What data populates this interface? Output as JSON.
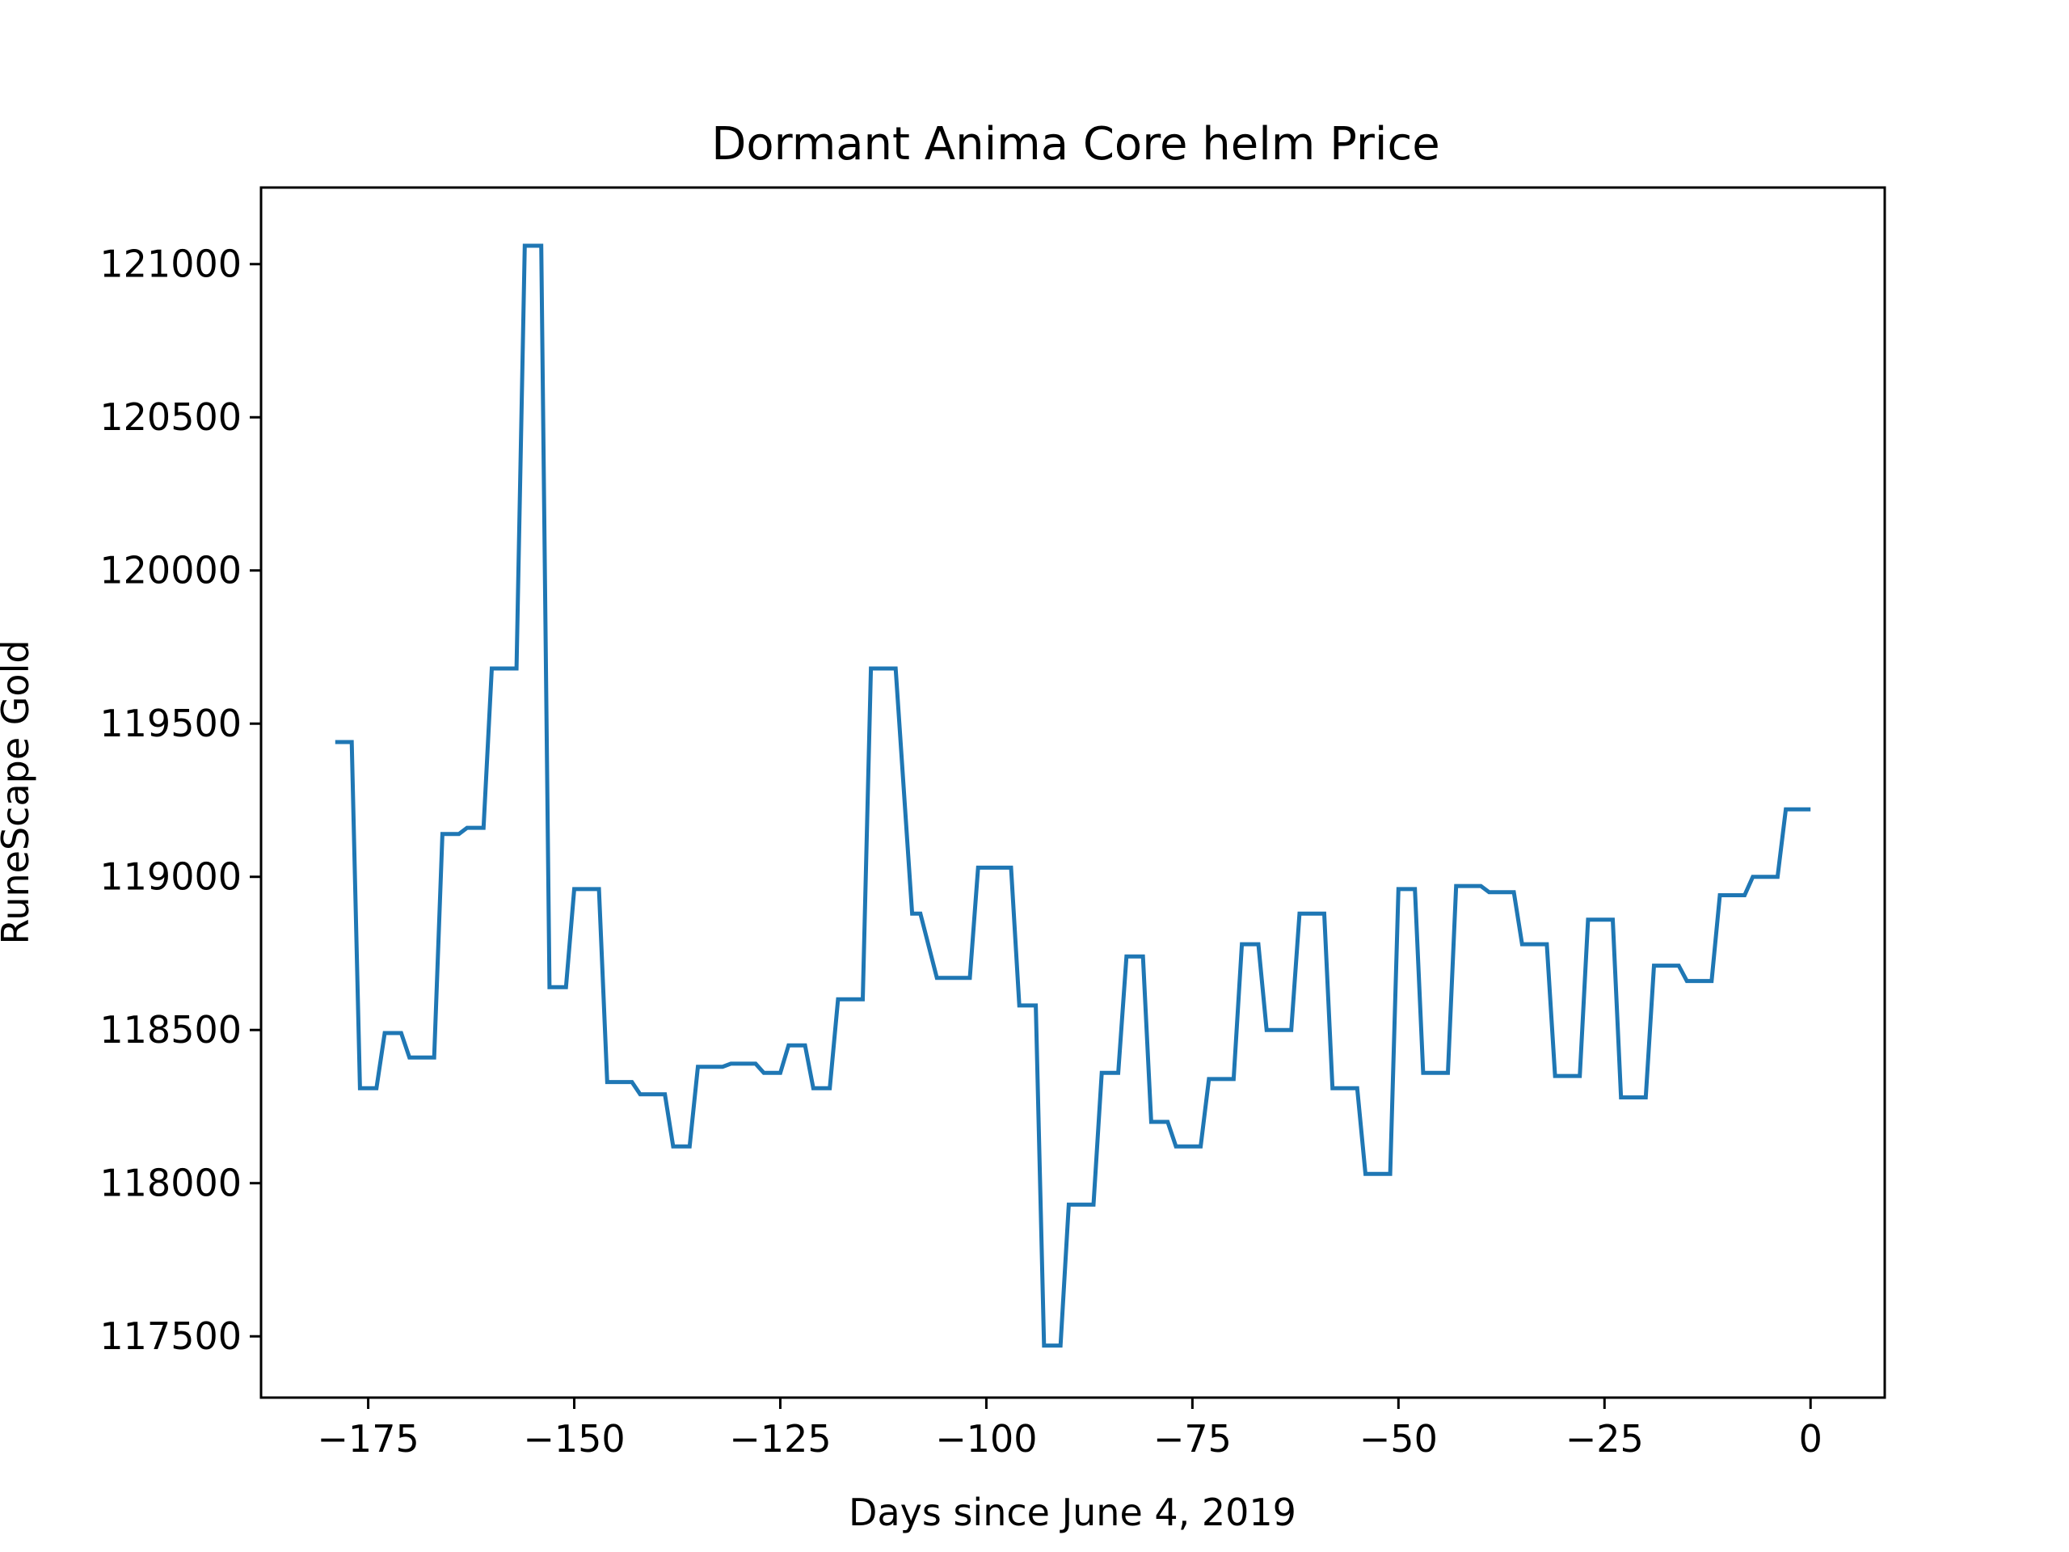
{
  "chart_data": {
    "type": "line",
    "title": "Dormant Anima Core helm Price",
    "xlabel": "Days since June 4, 2019",
    "ylabel": "RuneScape Gold",
    "xlim": [
      -188,
      9
    ],
    "ylim": [
      117300,
      121250
    ],
    "grid": false,
    "legend": "none",
    "x_ticks": [
      {
        "value": -175,
        "label": "−175"
      },
      {
        "value": -150,
        "label": "−150"
      },
      {
        "value": -125,
        "label": "−125"
      },
      {
        "value": -100,
        "label": "−100"
      },
      {
        "value": -75,
        "label": "−75"
      },
      {
        "value": -50,
        "label": "−50"
      },
      {
        "value": -25,
        "label": "−25"
      },
      {
        "value": 0,
        "label": "0"
      }
    ],
    "y_ticks": [
      {
        "value": 117500,
        "label": "117500"
      },
      {
        "value": 118000,
        "label": "118000"
      },
      {
        "value": 118500,
        "label": "118500"
      },
      {
        "value": 119000,
        "label": "119000"
      },
      {
        "value": 119500,
        "label": "119500"
      },
      {
        "value": 120000,
        "label": "120000"
      },
      {
        "value": 120500,
        "label": "120500"
      },
      {
        "value": 121000,
        "label": "121000"
      }
    ],
    "series": [
      {
        "color": "#1f77b4",
        "x": [
          -179,
          -177,
          -176,
          -174,
          -173,
          -171,
          -170,
          -167,
          -166,
          -164,
          -163,
          -161,
          -160,
          -157,
          -156,
          -154,
          -153,
          -151,
          -150,
          -147,
          -146,
          -143,
          -142,
          -139,
          -138,
          -136,
          -135,
          -132,
          -131,
          -128,
          -127,
          -125,
          -124,
          -122,
          -121,
          -119,
          -118,
          -115,
          -114,
          -112,
          -111,
          -109,
          -108,
          -106,
          -105,
          -102,
          -101,
          -97,
          -96,
          -94,
          -93,
          -91,
          -90,
          -87,
          -86,
          -84,
          -83,
          -81,
          -80,
          -78,
          -77,
          -74,
          -73,
          -70,
          -69,
          -67,
          -66,
          -63,
          -62,
          -59,
          -58,
          -55,
          -54,
          -51,
          -50,
          -48,
          -47,
          -44,
          -43,
          -40,
          -39,
          -36,
          -35,
          -32,
          -31,
          -28,
          -27,
          -24,
          -23,
          -20,
          -19,
          -16,
          -15,
          -12,
          -11,
          -8,
          -7,
          -4,
          -3,
          0
        ],
        "y": [
          119440,
          119440,
          118310,
          118310,
          118490,
          118490,
          118410,
          118410,
          119140,
          119140,
          119160,
          119160,
          119680,
          119680,
          121060,
          121060,
          118640,
          118640,
          118960,
          118960,
          118330,
          118330,
          118290,
          118290,
          118120,
          118120,
          118380,
          118380,
          118390,
          118390,
          118360,
          118360,
          118450,
          118450,
          118310,
          118310,
          118600,
          118600,
          119680,
          119680,
          119680,
          118880,
          118880,
          118670,
          118670,
          118670,
          119030,
          119030,
          118580,
          118580,
          117470,
          117470,
          117930,
          117930,
          118360,
          118360,
          118740,
          118740,
          118200,
          118200,
          118120,
          118120,
          118340,
          118340,
          118780,
          118780,
          118500,
          118500,
          118880,
          118880,
          118310,
          118310,
          118030,
          118030,
          118960,
          118960,
          118360,
          118360,
          118970,
          118970,
          118950,
          118950,
          118780,
          118780,
          118350,
          118350,
          118860,
          118860,
          118280,
          118280,
          118710,
          118710,
          118660,
          118660,
          118940,
          118940,
          119000,
          119000,
          119220,
          119220
        ]
      }
    ]
  }
}
